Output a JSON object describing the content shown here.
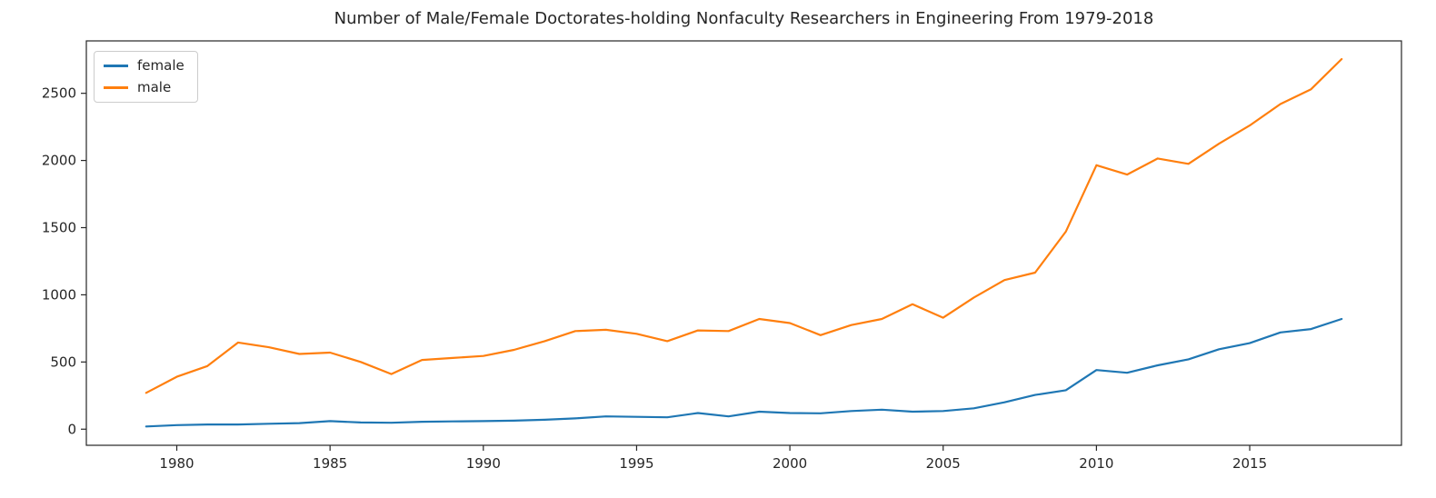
{
  "chart_data": {
    "type": "line",
    "title": "Number of Male/Female Doctorates-holding Nonfaculty Researchers in Engineering From 1979-2018",
    "xlabel": "",
    "ylabel": "",
    "grid": false,
    "legend_position": "upper left",
    "xlim": [
      1977.05,
      2019.95
    ],
    "ylim": [
      -120,
      2890
    ],
    "xticks": [
      1980,
      1985,
      1990,
      1995,
      2000,
      2005,
      2010,
      2015
    ],
    "yticks": [
      0,
      500,
      1000,
      1500,
      2000,
      2500
    ],
    "x": [
      1979,
      1980,
      1981,
      1982,
      1983,
      1984,
      1985,
      1986,
      1987,
      1988,
      1989,
      1990,
      1991,
      1992,
      1993,
      1994,
      1995,
      1996,
      1997,
      1998,
      1999,
      2000,
      2001,
      2002,
      2003,
      2004,
      2005,
      2006,
      2007,
      2008,
      2009,
      2010,
      2011,
      2012,
      2013,
      2014,
      2015,
      2016,
      2017,
      2018
    ],
    "series": [
      {
        "name": "female",
        "color": "#1f77b4",
        "values": [
          20,
          30,
          35,
          35,
          40,
          45,
          60,
          50,
          48,
          55,
          58,
          60,
          63,
          70,
          80,
          95,
          92,
          88,
          120,
          95,
          130,
          120,
          118,
          135,
          145,
          130,
          135,
          155,
          200,
          255,
          290,
          440,
          420,
          475,
          520,
          595,
          640,
          720,
          745,
          820
        ]
      },
      {
        "name": "male",
        "color": "#ff7f0e",
        "values": [
          270,
          390,
          470,
          645,
          610,
          560,
          570,
          500,
          410,
          515,
          530,
          545,
          590,
          655,
          730,
          740,
          710,
          655,
          735,
          730,
          820,
          790,
          700,
          775,
          820,
          930,
          830,
          980,
          1110,
          1165,
          1470,
          1965,
          1895,
          2015,
          1975,
          2125,
          2260,
          2420,
          2530,
          2755
        ]
      }
    ]
  }
}
